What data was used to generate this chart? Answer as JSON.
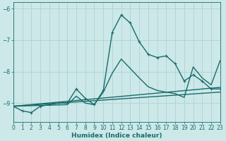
{
  "xlabel": "Humidex (Indice chaleur)",
  "xlim": [
    0,
    23
  ],
  "ylim": [
    -9.6,
    -5.8
  ],
  "yticks": [
    -9,
    -8,
    -7,
    -6
  ],
  "xticks": [
    0,
    1,
    2,
    3,
    4,
    5,
    6,
    7,
    8,
    9,
    10,
    11,
    12,
    13,
    14,
    15,
    16,
    17,
    18,
    19,
    20,
    21,
    22,
    23
  ],
  "bg_color": "#cce8e8",
  "line_color": "#1a6b6b",
  "grid_color": "#aacfcf",
  "lines": [
    {
      "x": [
        0,
        1,
        2,
        3,
        4,
        5,
        6,
        7,
        8,
        9,
        10,
        11,
        12,
        13,
        14,
        15,
        16,
        17,
        18,
        19,
        20,
        21,
        22,
        23
      ],
      "y": [
        -9.1,
        -9.25,
        -9.3,
        -9.1,
        -9.05,
        -9.0,
        -9.0,
        -8.55,
        -8.85,
        -9.05,
        -8.6,
        -6.75,
        -6.2,
        -6.45,
        -7.05,
        -7.45,
        -7.55,
        -7.5,
        -7.75,
        -8.3,
        -8.1,
        -8.3,
        -8.55,
        -8.55
      ],
      "marker": "+",
      "lw": 1.0
    },
    {
      "x": [
        0,
        6,
        7,
        8,
        9,
        10,
        11,
        12,
        13,
        14,
        15,
        16,
        17,
        18,
        19,
        20,
        21,
        22,
        23
      ],
      "y": [
        -9.1,
        -9.05,
        -8.78,
        -9.0,
        -9.05,
        -8.65,
        -8.05,
        -7.6,
        -7.9,
        -8.2,
        -8.48,
        -8.6,
        -8.65,
        -8.7,
        -8.82,
        -7.85,
        -8.2,
        -8.42,
        -7.65
      ],
      "marker": null,
      "lw": 1.0
    },
    {
      "x": [
        0,
        23
      ],
      "y": [
        -9.1,
        -8.5
      ],
      "marker": null,
      "lw": 1.0
    },
    {
      "x": [
        0,
        23
      ],
      "y": [
        -9.1,
        -8.65
      ],
      "marker": null,
      "lw": 1.0
    }
  ]
}
